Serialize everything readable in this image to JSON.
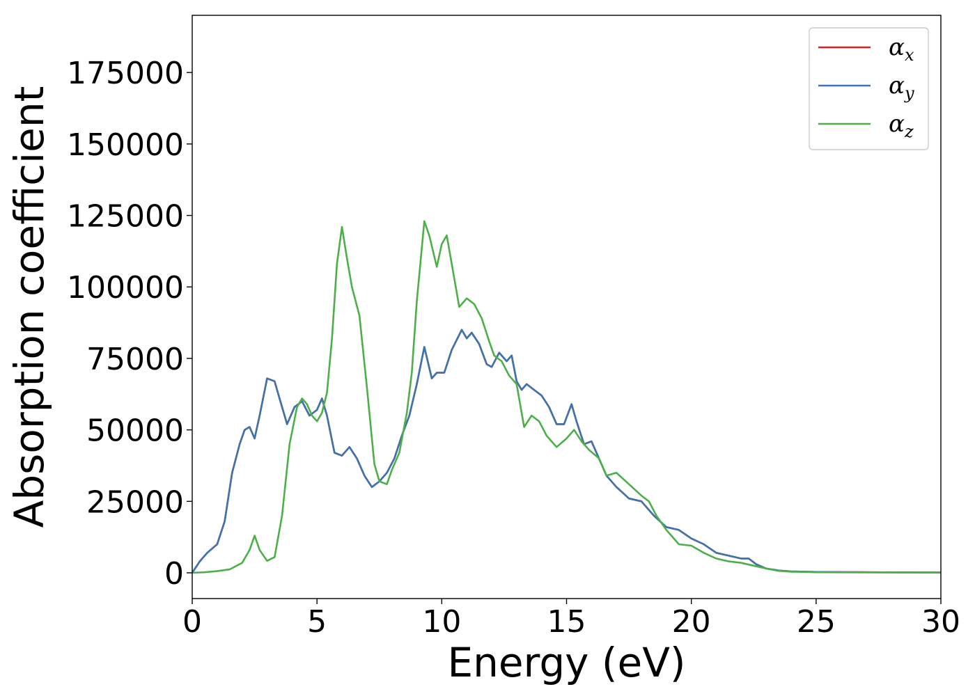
{
  "chart_data": {
    "type": "line",
    "xlabel": "Energy (eV)",
    "ylabel": "Absorption coefficient",
    "xlim": [
      0,
      30
    ],
    "ylim": [
      -9000,
      195000
    ],
    "xticks": [
      0,
      5,
      10,
      15,
      20,
      25,
      30
    ],
    "xtick_labels": [
      "0",
      "5",
      "10",
      "15",
      "20",
      "25",
      "30"
    ],
    "yticks": [
      0,
      25000,
      50000,
      75000,
      100000,
      125000,
      150000,
      175000
    ],
    "ytick_labels": [
      "0",
      "25000",
      "50000",
      "75000",
      "100000",
      "125000",
      "150000",
      "175000"
    ],
    "grid": false,
    "legend_position": "top-right",
    "series": [
      {
        "name": "α_x",
        "legend_symbol": "α",
        "legend_sub": "x",
        "color": "#e41a1c",
        "x": [
          0,
          0.3,
          0.6,
          1.0,
          1.3,
          1.6,
          1.9,
          2.1,
          2.3,
          2.5,
          2.7,
          3.0,
          3.3,
          3.5,
          3.8,
          4.1,
          4.4,
          4.7,
          5.0,
          5.2,
          5.4,
          5.7,
          6.0,
          6.3,
          6.6,
          6.9,
          7.2,
          7.5,
          7.8,
          8.1,
          8.4,
          8.7,
          9.0,
          9.3,
          9.6,
          9.8,
          10.1,
          10.4,
          10.8,
          11.0,
          11.2,
          11.5,
          11.8,
          12.0,
          12.3,
          12.6,
          12.8,
          13.0,
          13.2,
          13.4,
          13.7,
          14.0,
          14.3,
          14.6,
          14.9,
          15.2,
          15.4,
          15.7,
          16.0,
          16.3,
          16.6,
          17.0,
          17.5,
          18.0,
          18.5,
          19.0,
          19.5,
          20.0,
          20.5,
          21.0,
          21.5,
          22.0,
          22.3,
          22.6,
          23.0,
          23.5,
          24.0,
          25.0,
          27.0,
          30.0
        ],
        "values": [
          0,
          4000,
          7000,
          10000,
          18000,
          35000,
          45000,
          50000,
          51000,
          47000,
          55000,
          68000,
          67000,
          61000,
          52000,
          58000,
          60000,
          55000,
          57000,
          61000,
          55000,
          42000,
          41000,
          44000,
          40000,
          34000,
          30000,
          32000,
          35000,
          40000,
          48000,
          55000,
          66000,
          79000,
          68000,
          70000,
          70000,
          78000,
          85000,
          82000,
          84000,
          80000,
          73000,
          72000,
          77000,
          74000,
          76000,
          67000,
          64000,
          66000,
          64000,
          62000,
          58000,
          52000,
          52000,
          59000,
          53000,
          45000,
          46000,
          40000,
          34000,
          30000,
          26000,
          25000,
          20000,
          16000,
          15000,
          12000,
          10000,
          7000,
          6000,
          5000,
          5000,
          3000,
          1500,
          800,
          500,
          300,
          200,
          100
        ]
      },
      {
        "name": "α_y",
        "legend_symbol": "α",
        "legend_sub": "y",
        "color": "#3b75af",
        "x": [
          0,
          0.3,
          0.6,
          1.0,
          1.3,
          1.6,
          1.9,
          2.1,
          2.3,
          2.5,
          2.7,
          3.0,
          3.3,
          3.5,
          3.8,
          4.1,
          4.4,
          4.7,
          5.0,
          5.2,
          5.4,
          5.7,
          6.0,
          6.3,
          6.6,
          6.9,
          7.2,
          7.5,
          7.8,
          8.1,
          8.4,
          8.7,
          9.0,
          9.3,
          9.6,
          9.8,
          10.1,
          10.4,
          10.8,
          11.0,
          11.2,
          11.5,
          11.8,
          12.0,
          12.3,
          12.6,
          12.8,
          13.0,
          13.2,
          13.4,
          13.7,
          14.0,
          14.3,
          14.6,
          14.9,
          15.2,
          15.4,
          15.7,
          16.0,
          16.3,
          16.6,
          17.0,
          17.5,
          18.0,
          18.5,
          19.0,
          19.5,
          20.0,
          20.5,
          21.0,
          21.5,
          22.0,
          22.3,
          22.6,
          23.0,
          23.5,
          24.0,
          25.0,
          27.0,
          30.0
        ],
        "values": [
          0,
          4000,
          7000,
          10000,
          18000,
          35000,
          45000,
          50000,
          51000,
          47000,
          55000,
          68000,
          67000,
          61000,
          52000,
          58000,
          60000,
          55000,
          57000,
          61000,
          55000,
          42000,
          41000,
          44000,
          40000,
          34000,
          30000,
          32000,
          35000,
          40000,
          48000,
          55000,
          66000,
          79000,
          68000,
          70000,
          70000,
          78000,
          85000,
          82000,
          84000,
          80000,
          73000,
          72000,
          77000,
          74000,
          76000,
          67000,
          64000,
          66000,
          64000,
          62000,
          58000,
          52000,
          52000,
          59000,
          53000,
          45000,
          46000,
          40000,
          34000,
          30000,
          26000,
          25000,
          20000,
          16000,
          15000,
          12000,
          10000,
          7000,
          6000,
          5000,
          5000,
          3000,
          1500,
          800,
          500,
          300,
          200,
          100
        ]
      },
      {
        "name": "α_z",
        "legend_symbol": "α",
        "legend_sub": "z",
        "color": "#4daf4a",
        "x": [
          0,
          0.5,
          1.0,
          1.5,
          2.0,
          2.3,
          2.5,
          2.7,
          3.0,
          3.3,
          3.6,
          3.9,
          4.2,
          4.4,
          4.6,
          4.8,
          5.0,
          5.2,
          5.4,
          5.6,
          5.8,
          6.0,
          6.2,
          6.4,
          6.7,
          7.0,
          7.3,
          7.5,
          7.8,
          8.0,
          8.3,
          8.6,
          8.8,
          9.0,
          9.3,
          9.5,
          9.8,
          10.0,
          10.2,
          10.4,
          10.7,
          11.0,
          11.3,
          11.6,
          11.9,
          12.1,
          12.4,
          12.7,
          13.0,
          13.3,
          13.6,
          13.9,
          14.2,
          14.6,
          15.0,
          15.3,
          15.6,
          15.9,
          16.3,
          16.6,
          17.0,
          17.5,
          18.0,
          18.3,
          18.6,
          19.0,
          19.5,
          20.0,
          20.5,
          21.0,
          21.5,
          22.0,
          22.5,
          23.0,
          23.5,
          24.0,
          25.0,
          27.0,
          30.0
        ],
        "values": [
          0,
          200,
          600,
          1200,
          3500,
          8000,
          13000,
          8000,
          4200,
          5500,
          20000,
          45000,
          58000,
          61000,
          59000,
          55000,
          53000,
          56000,
          63000,
          82000,
          108000,
          121000,
          110000,
          100000,
          90000,
          65000,
          38000,
          32000,
          31000,
          36000,
          42000,
          56000,
          70000,
          95000,
          123000,
          118000,
          107000,
          115000,
          118000,
          108000,
          93000,
          96000,
          94000,
          89000,
          81000,
          76000,
          74000,
          69000,
          66000,
          51000,
          55000,
          53000,
          48000,
          44000,
          47000,
          50000,
          46000,
          43000,
          40000,
          34000,
          35000,
          31000,
          27000,
          25000,
          20000,
          15000,
          10000,
          9500,
          7000,
          5000,
          4000,
          3500,
          2500,
          1500,
          700,
          400,
          200,
          150,
          100
        ]
      }
    ]
  }
}
